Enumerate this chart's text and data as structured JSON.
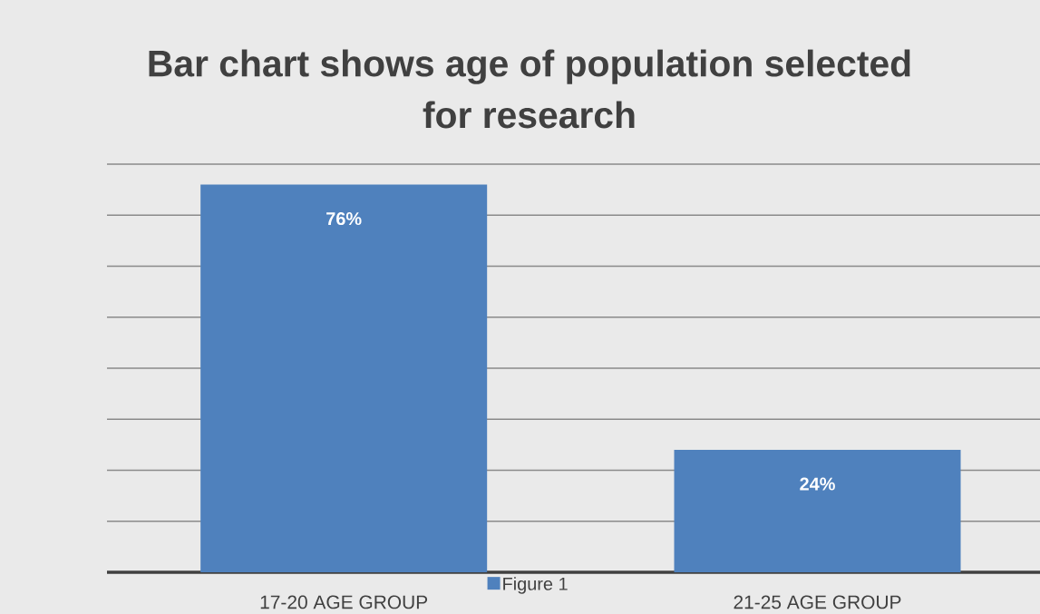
{
  "chart_data": {
    "type": "bar",
    "title": "Bar chart shows age of population selected for research",
    "categories": [
      "17-20 AGE GROUP",
      "21-25 AGE GROUP"
    ],
    "series": [
      {
        "name": "Figure 1",
        "color": "#4f81bd",
        "values": [
          76,
          24
        ],
        "value_labels": [
          "76%",
          "24%"
        ]
      }
    ],
    "ylim": [
      0,
      80
    ],
    "yticks": [
      {
        "value": 0,
        "label": null
      },
      {
        "value": 10,
        "label": null
      },
      {
        "value": 20,
        "label": null
      },
      {
        "value": 30,
        "label": null
      },
      {
        "value": 40,
        "label": null
      },
      {
        "value": 50,
        "label": null
      },
      {
        "value": 60,
        "label": null
      },
      {
        "value": 70,
        "label": null
      },
      {
        "value": 80,
        "label": null
      }
    ],
    "grid": "y",
    "tick_labels": "x",
    "legend": "bottom"
  }
}
